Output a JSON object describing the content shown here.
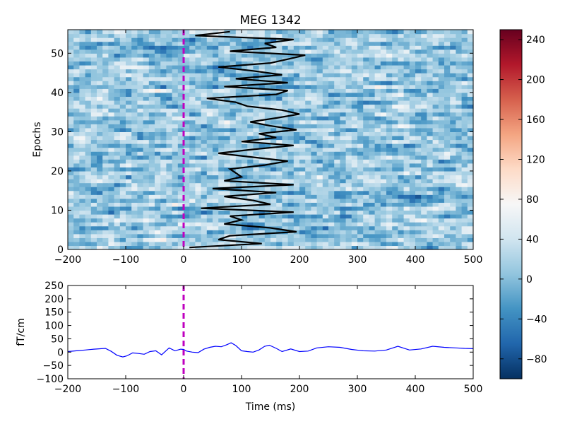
{
  "title": "MEG 1342",
  "chart_data": [
    {
      "type": "heatmap",
      "title": "MEG 1342",
      "ylabel": "Epochs",
      "xlim": [
        -200,
        500
      ],
      "ylim": [
        0,
        56
      ],
      "x_ticks": [
        -200,
        -100,
        0,
        100,
        200,
        300,
        400,
        500
      ],
      "y_ticks": [
        0,
        10,
        20,
        30,
        40,
        50
      ],
      "x_tick_labels": [
        "−200",
        "−100",
        "0",
        "100",
        "200",
        "300",
        "400",
        "500"
      ],
      "y_tick_labels": [
        "0",
        "10",
        "20",
        "30",
        "40",
        "50"
      ],
      "colormap": "RdBu_r",
      "colormap_stops": [
        "#053061",
        "#2166ac",
        "#4393c3",
        "#92c5de",
        "#d1e5f0",
        "#f7f7f7",
        "#fddbc7",
        "#f4a582",
        "#d6604d",
        "#b2182b",
        "#67001f"
      ],
      "color_range": [
        -100,
        250
      ],
      "n_epochs": 56,
      "n_time_bins": 70,
      "stimulus_onset_ms": 0,
      "stimulus_line_color": "#bf00bf",
      "overlay_line_color": "#000000",
      "overlay_latency_ms": [
        10,
        135,
        60,
        80,
        195,
        150,
        70,
        100,
        80,
        190,
        30,
        150,
        120,
        70,
        160,
        50,
        190,
        70,
        100,
        90,
        80,
        140,
        180,
        120,
        60,
        120,
        190,
        100,
        160,
        130,
        195,
        150,
        115,
        160,
        200,
        170,
        110,
        90,
        40,
        160,
        180,
        70,
        180,
        90,
        170,
        120,
        60,
        150,
        180,
        210,
        80,
        160,
        140,
        190,
        20,
        80
      ]
    },
    {
      "type": "line",
      "xlabel": "Time (ms)",
      "ylabel": "fT/cm",
      "xlim": [
        -200,
        500
      ],
      "ylim": [
        -100,
        250
      ],
      "x_ticks": [
        -200,
        -100,
        0,
        100,
        200,
        300,
        400,
        500
      ],
      "y_ticks": [
        -100,
        -50,
        0,
        50,
        100,
        150,
        200,
        250
      ],
      "x_tick_labels": [
        "−200",
        "−100",
        "0",
        "100",
        "200",
        "300",
        "400",
        "500"
      ],
      "y_tick_labels": [
        "−100",
        "−50",
        "0",
        "50",
        "100",
        "150",
        "200",
        "250"
      ],
      "line_color": "#0000ff",
      "stimulus_onset_ms": 0,
      "series": [
        {
          "x": [
            -200,
            -185,
            -170,
            -155,
            -135,
            -125,
            -115,
            -105,
            -98,
            -88,
            -78,
            -68,
            -58,
            -48,
            -38,
            -25,
            -15,
            -5,
            0,
            5,
            15,
            25,
            35,
            45,
            55,
            65,
            75,
            82,
            90,
            100,
            110,
            120,
            130,
            140,
            148,
            160,
            170,
            185,
            200,
            215,
            230,
            250,
            270,
            290,
            310,
            330,
            350,
            370,
            390,
            410,
            430,
            450,
            470,
            485,
            500
          ],
          "y": [
            2,
            5,
            8,
            11,
            14,
            3,
            -12,
            -18,
            -14,
            -3,
            -5,
            -8,
            2,
            5,
            -10,
            16,
            5,
            11,
            10,
            4,
            0,
            -2,
            11,
            18,
            22,
            20,
            28,
            35,
            25,
            5,
            2,
            0,
            8,
            22,
            26,
            14,
            2,
            12,
            2,
            4,
            16,
            20,
            18,
            10,
            5,
            4,
            8,
            22,
            8,
            12,
            22,
            18,
            16,
            14,
            13
          ]
        }
      ]
    },
    {
      "type": "colorbar",
      "range": [
        -100,
        250
      ],
      "ticks": [
        -80,
        -40,
        0,
        40,
        80,
        120,
        160,
        200,
        240
      ],
      "tick_labels": [
        "−80",
        "−40",
        "0",
        "40",
        "80",
        "120",
        "160",
        "200",
        "240"
      ]
    }
  ]
}
